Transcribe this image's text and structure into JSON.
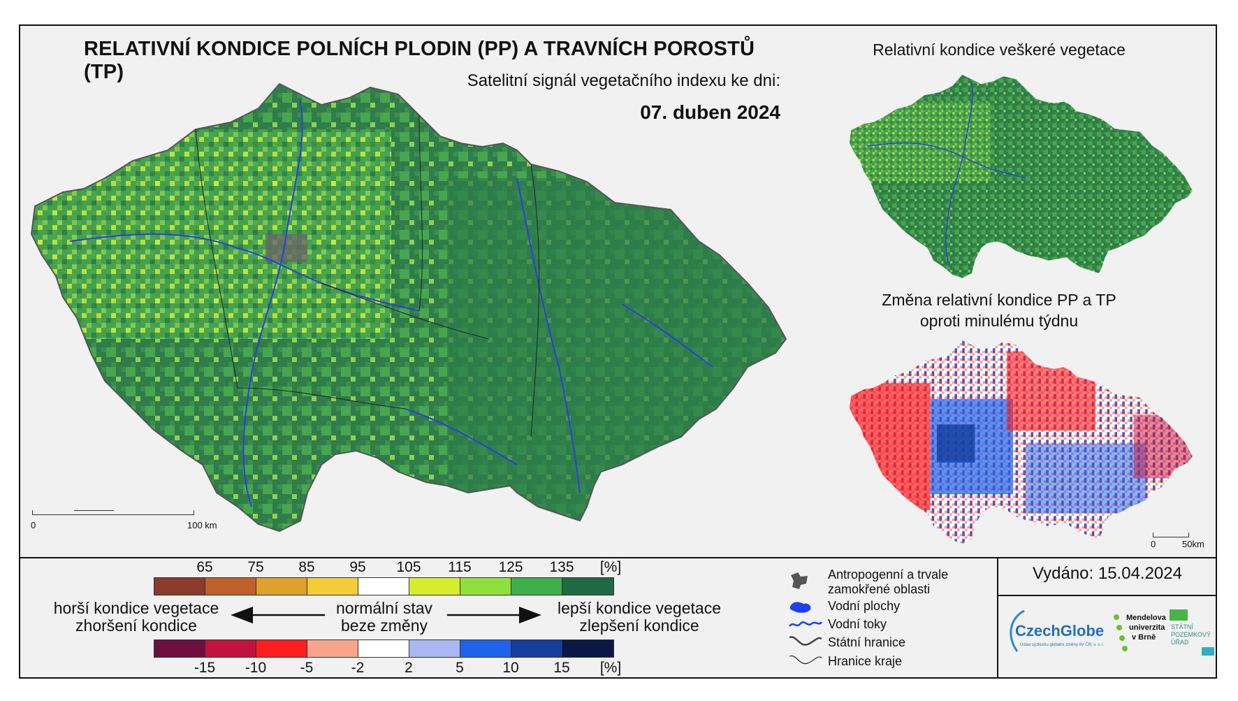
{
  "header": {
    "title": "RELATIVNÍ KONDICE POLNÍCH PLODIN (PP) A TRAVNÍCH POROSTŮ (TP)",
    "subtitle": "Satelitní signál vegetačního indexu ke dni:",
    "date": "07. duben 2024"
  },
  "main_map": {
    "scale_start": "0",
    "scale_end": "100 km",
    "colors": {
      "dark_green": "#2e7d4a",
      "mid_green": "#47a64e",
      "light_green": "#8fd14f",
      "yellow_green": "#d2ee3c",
      "river": "#2b3fe0"
    }
  },
  "inset_vegetation": {
    "title": "Relativní kondice veškeré vegetace"
  },
  "inset_change": {
    "title_line1": "Změna relativní kondice PP a TP",
    "title_line2": "oproti minulému týdnu",
    "scale_start": "0",
    "scale_end": "50km"
  },
  "legend_condition": {
    "ticks": [
      "65",
      "75",
      "85",
      "95",
      "105",
      "115",
      "125",
      "135",
      "[%]"
    ],
    "colors": [
      "#8b3a2b",
      "#c0602b",
      "#e0a02c",
      "#f3cc3a",
      "#ffffff",
      "#d4ee2e",
      "#8fe03c",
      "#3eb04a",
      "#1e6b43"
    ]
  },
  "legend_change": {
    "ticks": [
      "-15",
      "-10",
      "-5",
      "-2",
      "2",
      "5",
      "10",
      "15",
      "[%]"
    ],
    "colors": [
      "#6e0f3f",
      "#c3123c",
      "#ff1e1e",
      "#f7a58a",
      "#ffffff",
      "#a9b7f2",
      "#1f63ea",
      "#133e9e",
      "#0b1744"
    ]
  },
  "legend_labels": {
    "worse_1": "horší kondice vegetace",
    "worse_2": "zhoršení kondice",
    "normal_1": "normální stav",
    "normal_2": "beze změny",
    "better_1": "lepší kondice vegetace",
    "better_2": "zlepšení kondice"
  },
  "map_legend": {
    "anthropogenic_1": "Antropogenní a trvale",
    "anthropogenic_2": "zamokřené oblasti",
    "water_bodies": "Vodní plochy",
    "rivers": "Vodní toky",
    "state_border": "Státní hranice",
    "region_border": "Hranice kraje"
  },
  "issued": "Vydáno: 15.04.2024",
  "logos": {
    "czechglobe": "CzechGlobe",
    "czechglobe_sub": "Ústav výzkumu globální změny AV ČR, v. v. i.",
    "mendel_1": "Mendelova",
    "mendel_2": "univerzita",
    "mendel_3": "v Brně",
    "spu_1": "STÁTNÍ",
    "spu_2": "POZEMKOVÝ",
    "spu_3": "ÚŘAD"
  }
}
